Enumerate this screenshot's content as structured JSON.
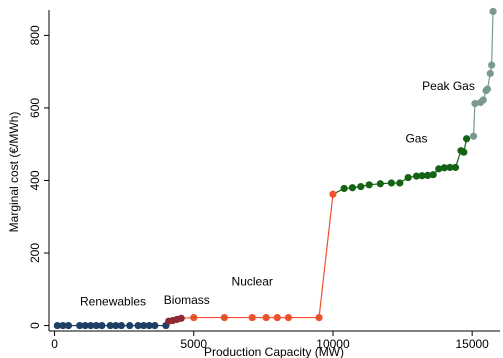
{
  "chart_data": {
    "type": "line",
    "xlabel": "Production Capacity (MW)",
    "ylabel": "Marginal cost (€/MWh)",
    "xlim": [
      -200,
      16000
    ],
    "ylim": [
      -15,
      870
    ],
    "xticks": [
      0,
      5000,
      10000,
      15000
    ],
    "yticks": [
      0,
      200,
      400,
      600,
      800
    ],
    "grid": false,
    "series": [
      {
        "name": "Renewables",
        "color": "#1f3f66",
        "points": [
          [
            100,
            0
          ],
          [
            300,
            0
          ],
          [
            500,
            0
          ],
          [
            900,
            0
          ],
          [
            1100,
            0
          ],
          [
            1300,
            0
          ],
          [
            1500,
            0
          ],
          [
            1700,
            0
          ],
          [
            2000,
            0
          ],
          [
            2200,
            0
          ],
          [
            2400,
            0
          ],
          [
            2700,
            0
          ],
          [
            3000,
            0
          ],
          [
            3200,
            0
          ],
          [
            3400,
            0
          ],
          [
            3600,
            0
          ],
          [
            4000,
            0
          ]
        ]
      },
      {
        "name": "Biomass",
        "color": "#8b2a35",
        "points": [
          [
            4100,
            12
          ],
          [
            4250,
            14
          ],
          [
            4400,
            17
          ],
          [
            4550,
            20
          ]
        ]
      },
      {
        "name": "Nuclear",
        "color": "#f0502b",
        "points": [
          [
            5000,
            22
          ],
          [
            6100,
            22
          ],
          [
            7100,
            22
          ],
          [
            7600,
            22
          ],
          [
            8000,
            22
          ],
          [
            8400,
            22
          ],
          [
            9500,
            22
          ],
          [
            10000,
            362
          ]
        ]
      },
      {
        "name": "Gas",
        "color": "#146214",
        "points": [
          [
            10400,
            378
          ],
          [
            10700,
            380
          ],
          [
            11000,
            383
          ],
          [
            11300,
            388
          ],
          [
            11700,
            391
          ],
          [
            12100,
            393
          ],
          [
            12400,
            393
          ],
          [
            12700,
            408
          ],
          [
            13000,
            412
          ],
          [
            13200,
            413
          ],
          [
            13400,
            414
          ],
          [
            13600,
            416
          ],
          [
            13800,
            432
          ],
          [
            14000,
            435
          ],
          [
            14200,
            436
          ],
          [
            14400,
            436
          ],
          [
            14600,
            482
          ],
          [
            14700,
            478
          ],
          [
            14800,
            515
          ]
        ]
      },
      {
        "name": "Peak Gas",
        "color": "#7a9a90",
        "points": [
          [
            15050,
            522
          ],
          [
            15100,
            612
          ],
          [
            15300,
            615
          ],
          [
            15400,
            622
          ],
          [
            15500,
            648
          ],
          [
            15550,
            652
          ],
          [
            15650,
            695
          ],
          [
            15700,
            718
          ],
          [
            15750,
            866
          ]
        ]
      }
    ],
    "labels": [
      {
        "text": "Renewables",
        "x": 2100,
        "y": 55
      },
      {
        "text": "Biomass",
        "x": 4750,
        "y": 60
      },
      {
        "text": "Nuclear",
        "x": 7100,
        "y": 110
      },
      {
        "text": "Gas",
        "x": 13000,
        "y": 505
      },
      {
        "text": "Peak Gas",
        "x": 14150,
        "y": 650
      }
    ]
  }
}
